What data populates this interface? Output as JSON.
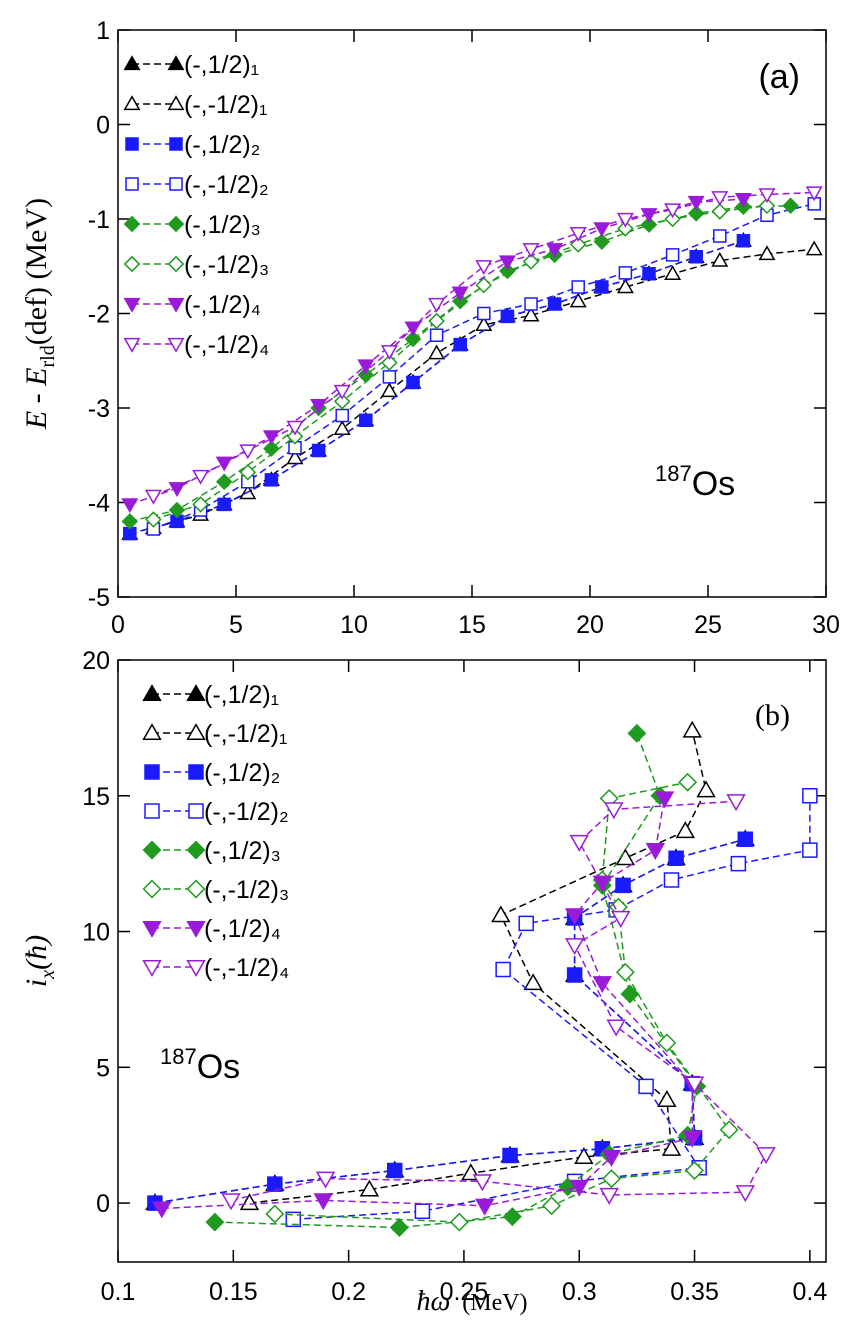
{
  "chart_data": [
    {
      "type": "line",
      "panel_label": "(a)",
      "isotope": [
        "187",
        "Os"
      ],
      "ylabel": [
        "E",
        " - ",
        "E",
        "rld",
        "(def) (MeV)"
      ],
      "xlim": [
        0,
        30
      ],
      "xticks": [
        0,
        5,
        10,
        15,
        20,
        25,
        30
      ],
      "ylim": [
        -5,
        1
      ],
      "yticks": [
        1,
        0,
        -1,
        -2,
        -3,
        -4,
        -5
      ],
      "series": [
        {
          "name": "(-,1/2)₁",
          "color": "#000000",
          "marker": "triangle-up",
          "filled": true,
          "x": [
            0.5,
            2.5,
            4.5,
            6.5,
            8.5,
            10.5,
            12.5,
            14.5,
            16.5,
            18.5,
            20.5,
            22.5,
            24.5,
            26.5
          ],
          "values": [
            -4.33,
            -4.2,
            -4.02,
            -3.76,
            -3.45,
            -3.13,
            -2.73,
            -2.33,
            -2.03,
            -1.9,
            -1.72,
            -1.58,
            -1.4,
            -1.23
          ]
        },
        {
          "name": "(-,-1/2)₁",
          "color": "#000000",
          "marker": "triangle-up",
          "filled": false,
          "x": [
            1.5,
            3.5,
            5.5,
            7.5,
            9.5,
            11.5,
            13.5,
            15.5,
            17.5,
            19.5,
            21.5,
            23.5,
            25.5,
            27.5,
            29.5
          ],
          "values": [
            -4.27,
            -4.13,
            -3.9,
            -3.53,
            -3.22,
            -2.82,
            -2.42,
            -2.12,
            -2.02,
            -1.87,
            -1.72,
            -1.58,
            -1.44,
            -1.37,
            -1.32
          ]
        },
        {
          "name": "(-,1/2)₂",
          "color": "#1a1aff",
          "marker": "square",
          "filled": true,
          "x": [
            0.5,
            2.5,
            4.5,
            6.5,
            8.5,
            10.5,
            12.5,
            14.5,
            16.5,
            18.5,
            20.5,
            22.5,
            24.5,
            26.5
          ],
          "values": [
            -4.33,
            -4.2,
            -4.02,
            -3.76,
            -3.45,
            -3.13,
            -2.73,
            -2.33,
            -2.03,
            -1.9,
            -1.72,
            -1.58,
            -1.4,
            -1.23
          ]
        },
        {
          "name": "(-,-1/2)₂",
          "color": "#1a1aff",
          "marker": "square",
          "filled": false,
          "x": [
            1.5,
            3.5,
            5.5,
            7.5,
            9.5,
            11.5,
            13.5,
            15.5,
            17.5,
            19.5,
            21.5,
            23.5,
            25.5,
            27.5,
            29.5
          ],
          "values": [
            -4.28,
            -4.08,
            -3.78,
            -3.42,
            -3.08,
            -2.67,
            -2.23,
            -2.0,
            -1.9,
            -1.72,
            -1.57,
            -1.38,
            -1.18,
            -0.96,
            -0.84
          ]
        },
        {
          "name": "(-,1/2)₃",
          "color": "#1f9a1f",
          "marker": "diamond",
          "filled": true,
          "x": [
            0.5,
            2.5,
            4.5,
            6.5,
            8.5,
            10.5,
            12.5,
            14.5,
            16.5,
            18.5,
            20.5,
            22.5,
            24.5,
            26.5,
            28.5
          ],
          "values": [
            -4.2,
            -4.08,
            -3.78,
            -3.43,
            -3.0,
            -2.65,
            -2.27,
            -1.87,
            -1.55,
            -1.38,
            -1.24,
            -1.06,
            -0.94,
            -0.87,
            -0.86
          ]
        },
        {
          "name": "(-,-1/2)₃",
          "color": "#1f9a1f",
          "marker": "diamond",
          "filled": false,
          "x": [
            1.5,
            3.5,
            5.5,
            7.5,
            9.5,
            11.5,
            13.5,
            15.5,
            17.5,
            19.5,
            21.5,
            23.5,
            25.5,
            27.5
          ],
          "values": [
            -4.18,
            -4.02,
            -3.68,
            -3.3,
            -2.93,
            -2.52,
            -2.08,
            -1.7,
            -1.45,
            -1.27,
            -1.1,
            -1.0,
            -0.92,
            -0.86
          ]
        },
        {
          "name": "(-,1/2)₄",
          "color": "#9a1ad9",
          "marker": "triangle-down",
          "filled": true,
          "x": [
            0.5,
            2.5,
            4.5,
            6.5,
            8.5,
            10.5,
            12.5,
            14.5,
            16.5,
            18.5,
            20.5,
            22.5,
            24.5,
            26.5
          ],
          "values": [
            -4.02,
            -3.85,
            -3.58,
            -3.3,
            -2.97,
            -2.55,
            -2.15,
            -1.78,
            -1.45,
            -1.32,
            -1.1,
            -0.95,
            -0.82,
            -0.79
          ]
        },
        {
          "name": "(-,-1/2)₄",
          "color": "#9a1ad9",
          "marker": "triangle-down",
          "filled": false,
          "x": [
            1.5,
            3.5,
            5.5,
            7.5,
            9.5,
            11.5,
            13.5,
            15.5,
            17.5,
            19.5,
            21.5,
            23.5,
            25.5,
            27.5,
            29.5
          ],
          "values": [
            -3.93,
            -3.72,
            -3.45,
            -3.2,
            -2.82,
            -2.4,
            -1.9,
            -1.5,
            -1.32,
            -1.15,
            -1.0,
            -0.9,
            -0.77,
            -0.74,
            -0.72
          ]
        }
      ]
    },
    {
      "type": "line",
      "panel_label": "(b)",
      "isotope": [
        "187",
        "Os"
      ],
      "ylabel": [
        "i",
        "x",
        "(ħ)"
      ],
      "xlabel": [
        "ħω",
        "(MeV)"
      ],
      "xlim": [
        0.1,
        0.407
      ],
      "xticks": [
        0.1,
        0.15,
        0.2,
        0.25,
        0.3,
        0.35,
        0.4
      ],
      "ylim": [
        -2.17,
        20
      ],
      "yticks": [
        0,
        5,
        10,
        15,
        20
      ],
      "series": [
        {
          "name": "(-,1/2)₁",
          "color": "#000000",
          "marker": "triangle-up",
          "filled": true,
          "x": [
            0.116,
            0.168,
            0.22,
            0.27,
            0.31,
            0.35,
            0.349,
            0.298,
            0.298,
            0.319,
            0.342,
            0.372
          ],
          "values": [
            0,
            0.7,
            1.2,
            1.75,
            2.0,
            2.4,
            4.4,
            8.4,
            10.5,
            11.7,
            12.7,
            13.4
          ]
        },
        {
          "name": "(-,-1/2)₁",
          "color": "#000000",
          "marker": "triangle-up",
          "filled": false,
          "x": [
            0.157,
            0.209,
            0.253,
            0.302,
            0.34,
            0.338,
            0.28,
            0.266,
            0.32,
            0.346,
            0.355,
            0.349
          ],
          "values": [
            0,
            0.5,
            1.1,
            1.7,
            2.0,
            3.8,
            8.1,
            10.6,
            12.7,
            13.7,
            15.2,
            17.4
          ]
        },
        {
          "name": "(-,1/2)₂",
          "color": "#1a1aff",
          "marker": "square",
          "filled": true,
          "x": [
            0.116,
            0.168,
            0.22,
            0.27,
            0.31,
            0.35,
            0.349,
            0.298,
            0.298,
            0.319,
            0.342,
            0.372
          ],
          "values": [
            0,
            0.7,
            1.2,
            1.75,
            2.0,
            2.4,
            4.4,
            8.4,
            10.5,
            11.7,
            12.7,
            13.4
          ]
        },
        {
          "name": "(-,-1/2)₂",
          "color": "#1a1aff",
          "marker": "square",
          "filled": false,
          "x": [
            0.176,
            0.232,
            0.298,
            0.352,
            0.329,
            0.267,
            0.277,
            0.316,
            0.34,
            0.369,
            0.4,
            0.4
          ],
          "values": [
            -0.6,
            -0.3,
            0.8,
            1.3,
            4.3,
            8.6,
            10.3,
            10.8,
            11.9,
            12.5,
            13.0,
            15.0
          ]
        },
        {
          "name": "(-,1/2)₃",
          "color": "#1f9a1f",
          "marker": "diamond",
          "filled": true,
          "x": [
            0.142,
            0.222,
            0.271,
            0.295,
            0.313,
            0.347,
            0.351,
            0.322,
            0.31,
            0.335,
            0.325
          ],
          "values": [
            -0.7,
            -0.9,
            -0.5,
            0.6,
            1.8,
            2.5,
            4.3,
            7.7,
            11.7,
            15.0,
            17.3
          ]
        },
        {
          "name": "(-,-1/2)₃",
          "color": "#1f9a1f",
          "marker": "diamond",
          "filled": false,
          "x": [
            0.168,
            0.248,
            0.288,
            0.314,
            0.35,
            0.365,
            0.338,
            0.32,
            0.317,
            0.31,
            0.313,
            0.347
          ],
          "values": [
            -0.4,
            -0.7,
            -0.1,
            0.9,
            1.2,
            2.7,
            5.9,
            8.5,
            10.9,
            11.9,
            14.9,
            15.5
          ]
        },
        {
          "name": "(-,1/2)₄",
          "color": "#9a1ad9",
          "marker": "triangle-down",
          "filled": true,
          "x": [
            0.119,
            0.189,
            0.259,
            0.3,
            0.314,
            0.349,
            0.349,
            0.31,
            0.298,
            0.31,
            0.333,
            0.337
          ],
          "values": [
            -0.2,
            0.1,
            -0.1,
            0.6,
            1.7,
            2.4,
            4.4,
            8.1,
            10.6,
            11.8,
            13.0,
            14.9
          ]
        },
        {
          "name": "(-,-1/2)₄",
          "color": "#9a1ad9",
          "marker": "triangle-down",
          "filled": false,
          "x": [
            0.149,
            0.19,
            0.258,
            0.313,
            0.372,
            0.381,
            0.35,
            0.316,
            0.298,
            0.318,
            0.3,
            0.315,
            0.368
          ],
          "values": [
            0.1,
            0.9,
            0.8,
            0.3,
            0.4,
            1.8,
            4.4,
            6.5,
            9.5,
            10.5,
            13.3,
            14.5,
            14.8
          ]
        }
      ]
    }
  ]
}
